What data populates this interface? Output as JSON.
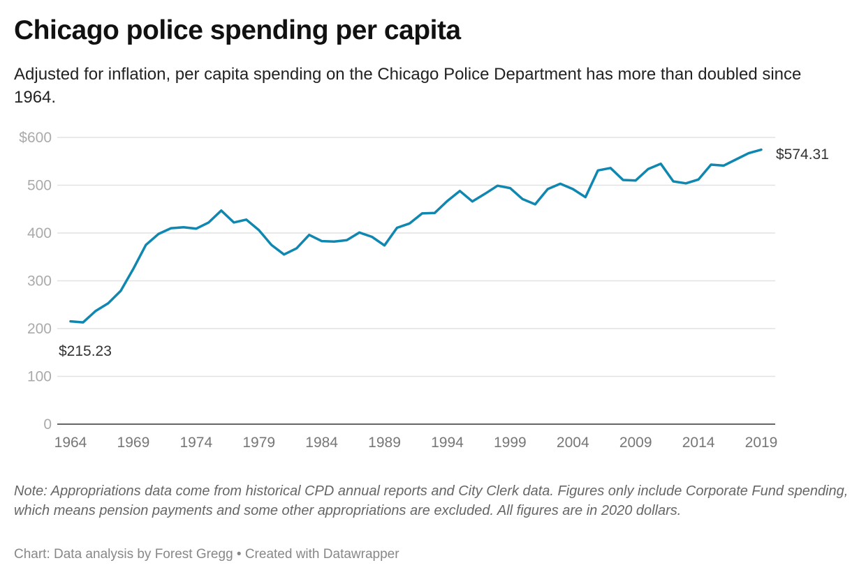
{
  "title": "Chicago police spending per capita",
  "subtitle": "Adjusted for inflation, per capita spending on the Chicago Police Department has more than doubled since 1964.",
  "note": "Note: Appropriations data come from historical CPD annual reports and City Clerk data. Figures only include Corporate Fund spending, which means pension payments and some other appropriations are excluded. All figures are in 2020 dollars.",
  "source": "Chart: Data analysis by Forest Gregg • Created with Datawrapper",
  "chart_data": {
    "type": "line",
    "title": "Chicago police spending per capita",
    "xlabel": "",
    "ylabel": "",
    "xlim": [
      1964,
      2019
    ],
    "ylim": [
      0,
      600
    ],
    "grid": true,
    "line_color": "#0f87b0",
    "x_ticks": [
      "1964",
      "1969",
      "1974",
      "1979",
      "1984",
      "1989",
      "1994",
      "1999",
      "2004",
      "2009",
      "2014",
      "2019"
    ],
    "y_ticks": [
      "0",
      "100",
      "200",
      "300",
      "400",
      "500",
      "$600"
    ],
    "annotations": [
      {
        "x": 1964,
        "y": 215.23,
        "label": "$215.23"
      },
      {
        "x": 2019,
        "y": 574.31,
        "label": "$574.31"
      }
    ],
    "x": [
      1964,
      1965,
      1966,
      1967,
      1968,
      1969,
      1970,
      1971,
      1972,
      1973,
      1974,
      1975,
      1976,
      1977,
      1978,
      1979,
      1980,
      1981,
      1982,
      1983,
      1984,
      1985,
      1986,
      1987,
      1988,
      1989,
      1990,
      1991,
      1992,
      1993,
      1994,
      1995,
      1996,
      1997,
      1998,
      1999,
      2000,
      2001,
      2002,
      2003,
      2004,
      2005,
      2006,
      2007,
      2008,
      2009,
      2010,
      2011,
      2012,
      2013,
      2014,
      2015,
      2016,
      2017,
      2018,
      2019
    ],
    "values": [
      215.23,
      213,
      237,
      253,
      279,
      325,
      375,
      398,
      410,
      412,
      409,
      422,
      447,
      422,
      428,
      406,
      375,
      355,
      368,
      396,
      383,
      382,
      385,
      401,
      392,
      374,
      411,
      420,
      441,
      442,
      467,
      488,
      466,
      482,
      499,
      494,
      471,
      460,
      492,
      503,
      492,
      475,
      531,
      536,
      511,
      510,
      534,
      545,
      508,
      504,
      512,
      543,
      541,
      554,
      567,
      574.31
    ]
  }
}
